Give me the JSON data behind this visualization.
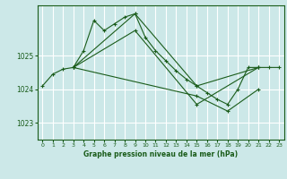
{
  "background_color": "#cce8e8",
  "grid_color": "#ffffff",
  "line_color": "#1a5c1a",
  "title": "Graphe pression niveau de la mer (hPa)",
  "yticks": [
    1023,
    1024,
    1025
  ],
  "ylim": [
    1022.5,
    1026.5
  ],
  "xlim": [
    -0.5,
    23.5
  ],
  "xticks": [
    0,
    1,
    2,
    3,
    4,
    5,
    6,
    7,
    8,
    9,
    10,
    11,
    12,
    13,
    14,
    15,
    16,
    17,
    18,
    19,
    20,
    21,
    22,
    23
  ],
  "series": [
    {
      "x": [
        0,
        1,
        2,
        3,
        4,
        5,
        6,
        7,
        8,
        9,
        10,
        11,
        12,
        13,
        14,
        15,
        16,
        17,
        18,
        19,
        20,
        21,
        22,
        23
      ],
      "y": [
        1024.1,
        1024.45,
        1024.6,
        1024.65,
        1025.15,
        1026.05,
        1025.75,
        1025.95,
        1026.15,
        1026.25,
        1025.55,
        1025.15,
        1024.85,
        1024.55,
        1024.3,
        1024.1,
        1023.9,
        1023.7,
        1023.55,
        1024.0,
        1024.65,
        1024.65,
        1024.65,
        1024.65
      ]
    },
    {
      "x": [
        3,
        9,
        15,
        21
      ],
      "y": [
        1024.65,
        1026.25,
        1024.1,
        1024.65
      ]
    },
    {
      "x": [
        3,
        9,
        15,
        21
      ],
      "y": [
        1024.65,
        1025.75,
        1023.55,
        1024.65
      ]
    },
    {
      "x": [
        3,
        15,
        18,
        21
      ],
      "y": [
        1024.65,
        1023.8,
        1023.35,
        1024.0
      ]
    }
  ]
}
